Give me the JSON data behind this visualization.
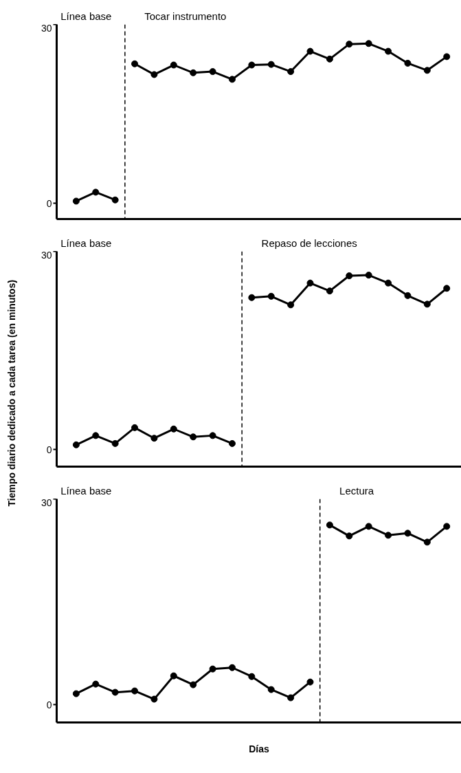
{
  "chart_data": [
    {
      "type": "line",
      "annotations": [
        "Línea base",
        "Tocar instrumento"
      ],
      "categories": [
        null,
        null,
        null,
        null,
        null,
        null,
        null,
        null,
        null,
        null,
        null,
        null,
        null,
        null,
        null,
        null,
        null,
        null,
        null,
        null
      ],
      "ylim": [
        -2.6,
        30
      ],
      "yticks": [
        0,
        30
      ],
      "tick_labels": "y",
      "grid": false,
      "marker": "circle",
      "line_style": "solid",
      "ref_lines": [
        {
          "axis": "x",
          "color": "#000000",
          "line_style": "dashed"
        }
      ],
      "series": [
        {
          "color": "#000000",
          "values": [
            0.4,
            1.9,
            0.6,
            null,
            null,
            null,
            null,
            null,
            null,
            null,
            null,
            null,
            null,
            null,
            null,
            null,
            null,
            null,
            null,
            null
          ]
        },
        {
          "color": "#000000",
          "values": [
            null,
            null,
            null,
            23.4,
            21.6,
            23.2,
            21.9,
            22.1,
            20.8,
            23.2,
            23.3,
            22.1,
            25.5,
            24.2,
            26.7,
            26.8,
            25.5,
            23.5,
            22.3,
            24.6
          ]
        }
      ]
    },
    {
      "type": "line",
      "ylabel": "Tiempo diario dedicado a cada tarea (en minutos)",
      "annotations": [
        "Línea base",
        "Repaso de lecciones"
      ],
      "categories": [
        null,
        null,
        null,
        null,
        null,
        null,
        null,
        null,
        null,
        null,
        null,
        null,
        null,
        null,
        null,
        null,
        null,
        null,
        null,
        null
      ],
      "ylim": [
        -2.6,
        30
      ],
      "yticks": [
        0,
        30
      ],
      "tick_labels": "y",
      "grid": false,
      "marker": "circle",
      "line_style": "solid",
      "ref_lines": [
        {
          "axis": "x",
          "color": "#000000",
          "line_style": "dashed"
        }
      ],
      "series": [
        {
          "color": "#000000",
          "values": [
            0.7,
            2.1,
            0.9,
            3.3,
            1.7,
            3.1,
            1.9,
            2.1,
            0.9,
            null,
            null,
            null,
            null,
            null,
            null,
            null,
            null,
            null,
            null,
            null
          ]
        },
        {
          "color": "#000000",
          "values": [
            null,
            null,
            null,
            null,
            null,
            null,
            null,
            null,
            null,
            23.0,
            23.2,
            21.9,
            25.2,
            24.0,
            26.3,
            26.4,
            25.2,
            23.3,
            22.0,
            24.4
          ]
        }
      ]
    },
    {
      "type": "line",
      "xlabel": "Días",
      "annotations": [
        "Línea base",
        "Lectura"
      ],
      "categories": [
        null,
        null,
        null,
        null,
        null,
        null,
        null,
        null,
        null,
        null,
        null,
        null,
        null,
        null,
        null,
        null,
        null,
        null,
        null,
        null
      ],
      "ylim": [
        -2.6,
        30
      ],
      "yticks": [
        0,
        30
      ],
      "tick_labels": "y",
      "grid": false,
      "marker": "circle",
      "line_style": "solid",
      "ref_lines": [
        {
          "axis": "x",
          "color": "#000000",
          "line_style": "dashed"
        }
      ],
      "series": [
        {
          "color": "#000000",
          "values": [
            1.6,
            3.0,
            1.8,
            2.0,
            0.8,
            4.2,
            2.9,
            5.2,
            5.4,
            4.1,
            2.2,
            1.0,
            3.3,
            null,
            null,
            null,
            null,
            null,
            null,
            null
          ]
        },
        {
          "color": "#000000",
          "values": [
            null,
            null,
            null,
            null,
            null,
            null,
            null,
            null,
            null,
            null,
            null,
            null,
            null,
            26.2,
            24.6,
            26.0,
            24.7,
            25.0,
            23.7,
            26.0
          ]
        }
      ]
    }
  ]
}
